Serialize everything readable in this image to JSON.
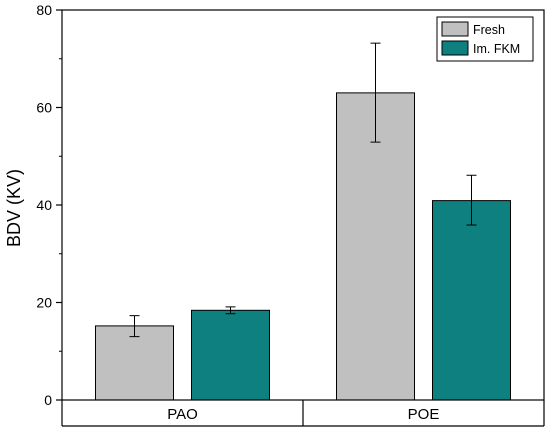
{
  "chart_data": {
    "type": "bar",
    "title": "",
    "xlabel": "",
    "ylabel": "BDV (KV)",
    "ylim": [
      0,
      80
    ],
    "yticks": [
      0,
      20,
      40,
      60,
      80
    ],
    "categories": [
      "PAO",
      "POE"
    ],
    "legend_position": "top-right",
    "grid": false,
    "series": [
      {
        "name": "Fresh",
        "color": "#c0c0c0",
        "values": [
          15.2,
          63.0
        ],
        "error_low": [
          13.0,
          52.9
        ],
        "error_high": [
          17.3,
          73.2
        ]
      },
      {
        "name": "Im. FKM",
        "color": "#0e8080",
        "values": [
          18.4,
          40.9
        ],
        "error_low": [
          17.7,
          35.9
        ],
        "error_high": [
          19.1,
          46.1
        ]
      }
    ]
  }
}
